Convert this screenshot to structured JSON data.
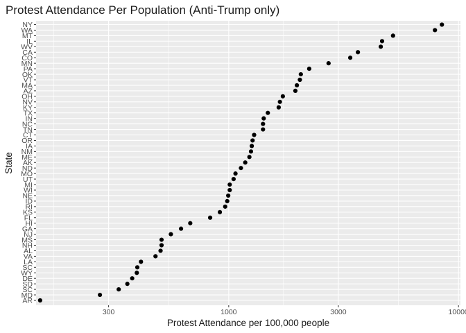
{
  "chart_data": {
    "type": "scatter",
    "title": "Protest Attendance Per Population (Anti-Trump only)",
    "xlabel": "Protest Attendance per 100,000 people",
    "ylabel": "State",
    "x_scale": "log10",
    "xlim": [
      145,
      10200
    ],
    "x_ticks": [
      300,
      1000,
      3000,
      10000
    ],
    "x_tick_labels": [
      "300",
      "1000",
      "3000",
      "10000"
    ],
    "grid": true,
    "panel_background": "#ebebeb",
    "grid_color": "#ffffff",
    "point_color": "#000000",
    "points": [
      {
        "state": "NY",
        "value": 8470
      },
      {
        "state": "WA",
        "value": 7900
      },
      {
        "state": "MT",
        "value": 5190
      },
      {
        "state": "IL",
        "value": 4650
      },
      {
        "state": "WV",
        "value": 4590
      },
      {
        "state": "CA",
        "value": 3650
      },
      {
        "state": "CO",
        "value": 3380
      },
      {
        "state": "MN",
        "value": 2720
      },
      {
        "state": "PA",
        "value": 2240
      },
      {
        "state": "OK",
        "value": 2060
      },
      {
        "state": "VT",
        "value": 2040
      },
      {
        "state": "MA",
        "value": 1980
      },
      {
        "state": "AZ",
        "value": 1950
      },
      {
        "state": "OH",
        "value": 1720
      },
      {
        "state": "NV",
        "value": 1670
      },
      {
        "state": "KY",
        "value": 1650
      },
      {
        "state": "TX",
        "value": 1480
      },
      {
        "state": "IN",
        "value": 1420
      },
      {
        "state": "NC",
        "value": 1410
      },
      {
        "state": "TN",
        "value": 1410
      },
      {
        "state": "CT",
        "value": 1290
      },
      {
        "state": "OR",
        "value": 1270
      },
      {
        "state": "IA",
        "value": 1260
      },
      {
        "state": "NM",
        "value": 1250
      },
      {
        "state": "ME",
        "value": 1230
      },
      {
        "state": "AK",
        "value": 1180
      },
      {
        "state": "ND",
        "value": 1130
      },
      {
        "state": "MO",
        "value": 1070
      },
      {
        "state": "UT",
        "value": 1050
      },
      {
        "state": "MI",
        "value": 1010
      },
      {
        "state": "WI",
        "value": 1010
      },
      {
        "state": "NE",
        "value": 995
      },
      {
        "state": "ID",
        "value": 985
      },
      {
        "state": "RI",
        "value": 965
      },
      {
        "state": "KS",
        "value": 915
      },
      {
        "state": "FL",
        "value": 830
      },
      {
        "state": "HI",
        "value": 680
      },
      {
        "state": "GA",
        "value": 620
      },
      {
        "state": "NJ",
        "value": 560
      },
      {
        "state": "MS",
        "value": 510
      },
      {
        "state": "NH",
        "value": 510
      },
      {
        "state": "AL",
        "value": 505
      },
      {
        "state": "VA",
        "value": 480
      },
      {
        "state": "LA",
        "value": 415
      },
      {
        "state": "SC",
        "value": 400
      },
      {
        "state": "WY",
        "value": 398
      },
      {
        "state": "DE",
        "value": 380
      },
      {
        "state": "SD",
        "value": 362
      },
      {
        "state": "SC",
        "value": 332
      },
      {
        "state": "MD",
        "value": 275
      },
      {
        "state": "AR",
        "value": 151
      }
    ]
  }
}
